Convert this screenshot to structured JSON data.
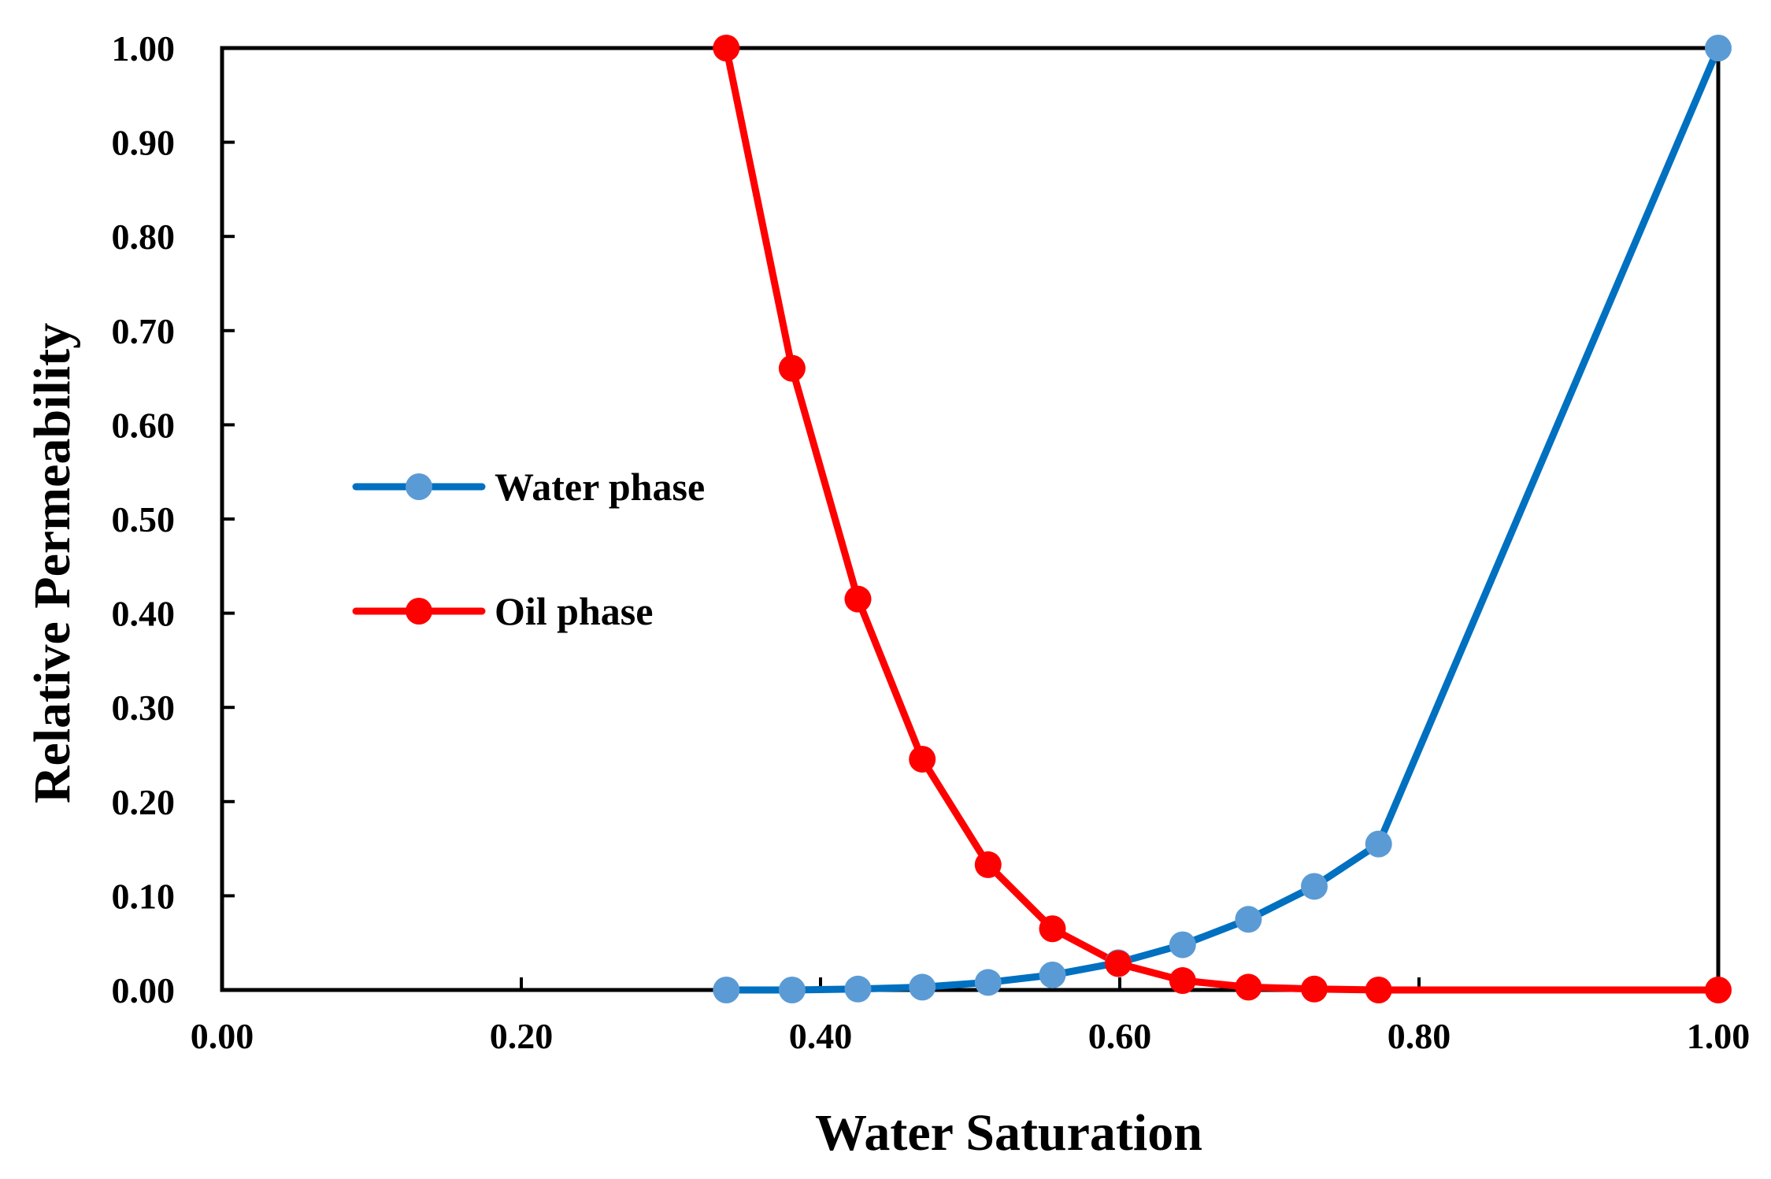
{
  "chart_data": {
    "type": "line",
    "xlabel": "Water Saturation",
    "ylabel": "Relative Permeability",
    "xlim": [
      0,
      1
    ],
    "ylim": [
      0,
      1
    ],
    "x_ticks": [
      "0.00",
      "0.20",
      "0.40",
      "0.60",
      "0.80",
      "1.00"
    ],
    "y_ticks": [
      "0.00",
      "0.10",
      "0.20",
      "0.30",
      "0.40",
      "0.50",
      "0.60",
      "0.70",
      "0.80",
      "0.90",
      "1.00"
    ],
    "grid": false,
    "legend_position": "left-center",
    "series": [
      {
        "name": "Water phase",
        "color": "#0070C0",
        "marker_color": "#5B9BD5",
        "x": [
          0.337,
          0.381,
          0.425,
          0.468,
          0.512,
          0.555,
          0.599,
          0.642,
          0.686,
          0.73,
          0.773,
          1.0
        ],
        "y": [
          0.0,
          0.0,
          0.001,
          0.003,
          0.008,
          0.016,
          0.029,
          0.048,
          0.075,
          0.11,
          0.155,
          1.0
        ]
      },
      {
        "name": "Oil phase",
        "color": "#FF0000",
        "marker_color": "#FF0000",
        "x": [
          0.337,
          0.381,
          0.425,
          0.468,
          0.512,
          0.555,
          0.599,
          0.642,
          0.686,
          0.73,
          0.773,
          1.0
        ],
        "y": [
          1.0,
          0.66,
          0.415,
          0.245,
          0.133,
          0.065,
          0.028,
          0.01,
          0.003,
          0.001,
          0.0,
          0.0
        ]
      }
    ]
  }
}
